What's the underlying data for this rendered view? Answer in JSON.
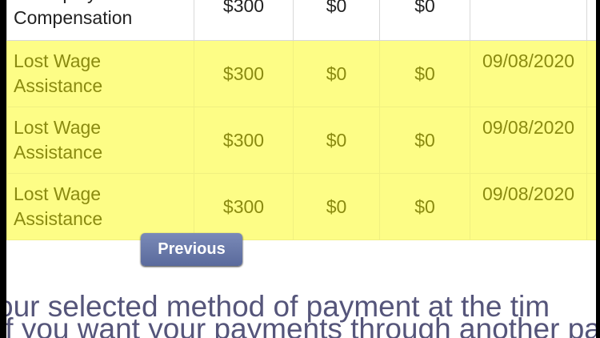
{
  "table": {
    "rows": [
      {
        "program": "Unemployment Compensation",
        "amount": "$300",
        "col3": "$0",
        "col4": "$0",
        "date": "",
        "highlighted": false
      },
      {
        "program": "Lost Wage Assistance",
        "amount": "$300",
        "col3": "$0",
        "col4": "$0",
        "date": "09/08/2020",
        "highlighted": true
      },
      {
        "program": "Lost Wage Assistance",
        "amount": "$300",
        "col3": "$0",
        "col4": "$0",
        "date": "09/08/2020",
        "highlighted": true
      },
      {
        "program": "Lost Wage Assistance",
        "amount": "$300",
        "col3": "$0",
        "col4": "$0",
        "date": "09/08/2020",
        "highlighted": true
      }
    ],
    "highlight_color": "#fdfd86"
  },
  "previous_label": "Previous",
  "footer_text": "our selected method of payment at the tim",
  "footer_text_2": "If you want your payments through another payment"
}
